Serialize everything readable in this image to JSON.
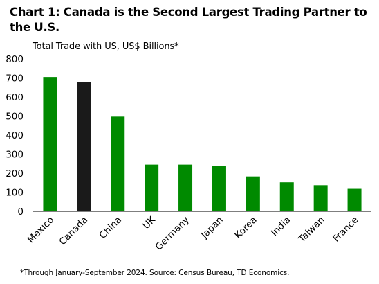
{
  "chart_title": "Chart 1: Canada is the Second Largest Trading Partner to the U.S.",
  "footnote": "*Through January-September 2024. Source: Census Bureau, TD Economics.",
  "colors": {
    "highlight": "#1a1a1a",
    "default": "#008a00",
    "axis": "#7f7f7f"
  },
  "chart_data": {
    "type": "bar",
    "title": "Total Trade with US, US$ Billions*",
    "xlabel": "",
    "ylabel": "",
    "categories": [
      "Mexico",
      "Canada",
      "China",
      "UK",
      "Germany",
      "Japan",
      "Korea",
      "India",
      "Taiwan",
      "France"
    ],
    "values": [
      705,
      680,
      497,
      245,
      245,
      237,
      183,
      152,
      137,
      118
    ],
    "highlight": "Canada",
    "ylim": [
      0,
      800
    ],
    "yticks": [
      0,
      100,
      200,
      300,
      400,
      500,
      600,
      700,
      800
    ],
    "grid": false,
    "legend": "none"
  }
}
